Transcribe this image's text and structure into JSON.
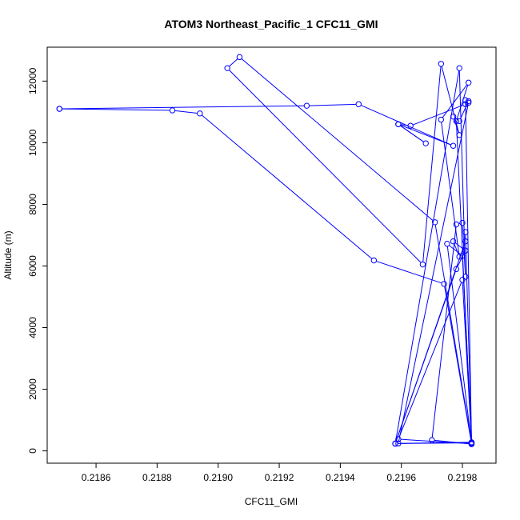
{
  "chart_data": {
    "type": "line",
    "title": "ATOM3 Northeast_Pacific_1 CFC11_GMI",
    "xlabel": "CFC11_GMI",
    "ylabel": "Altitude (m)",
    "xlim": [
      0.21844,
      0.21991
    ],
    "ylim": [
      -400,
      13100
    ],
    "xticks": [
      "0.2186",
      "0.2188",
      "0.2190",
      "0.2192",
      "0.2194",
      "0.2196",
      "0.2198"
    ],
    "xtick_values": [
      0.2186,
      0.2188,
      0.219,
      0.2192,
      0.2194,
      0.2196,
      0.2198
    ],
    "yticks": [
      "0",
      "2000",
      "4000",
      "6000",
      "8000",
      "10000",
      "12000"
    ],
    "ytick_values": [
      0,
      2000,
      4000,
      6000,
      8000,
      10000,
      12000
    ],
    "grid": false,
    "marker": "open-circle",
    "color": "#0000ff",
    "series": [
      {
        "x": [
          0.21848,
          0.21885,
          0.21894,
          0.21951,
          0.21974,
          0.21983,
          0.21959,
          0.2198,
          0.21983,
          0.2198,
          0.21975,
          0.21983,
          0.2197,
          0.21978,
          0.2198,
          0.21981,
          0.21979,
          0.21958,
          0.21981,
          0.21981,
          0.21983,
          0.21959,
          0.21982,
          0.21982,
          0.21979,
          0.21977,
          0.21979,
          0.21973,
          0.21967,
          0.21903,
          0.21907,
          0.21971,
          0.21983,
          0.21958,
          0.21978,
          0.21981,
          0.21977,
          0.21979,
          0.21973,
          0.21982,
          0.21978,
          0.21983,
          0.21981,
          0.21981,
          0.21963,
          0.21959,
          0.21968,
          0.21959,
          0.21977,
          0.21946,
          0.21929,
          0.21848
        ]
      },
      {
        "y": [
          11100,
          11050,
          10950,
          6180,
          5420,
          230,
          380,
          5550,
          270,
          6330,
          6720,
          220,
          350,
          7350,
          7400,
          5650,
          12420,
          230,
          6800,
          7100,
          280,
          240,
          11300,
          11350,
          10700,
          10850,
          10250,
          12560,
          6050,
          12420,
          12780,
          7420,
          260,
          240,
          5900,
          6500,
          6800,
          6300,
          10750,
          11950,
          10700,
          220,
          11380,
          11250,
          10550,
          10600,
          9980,
          10600,
          9900,
          11250,
          11200,
          11100
        ]
      }
    ]
  }
}
